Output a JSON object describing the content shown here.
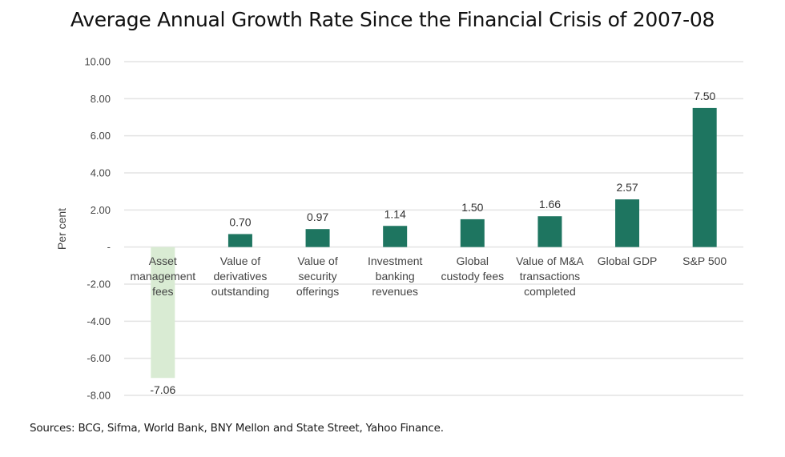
{
  "chart_data": {
    "type": "bar",
    "title": "Average Annual Growth Rate Since the Financial Crisis of 2007-08",
    "xlabel": "",
    "ylabel": "Per cent",
    "ylim": [
      -8,
      10
    ],
    "yticks": [
      10,
      8,
      6,
      4,
      2,
      0,
      -2,
      -4,
      -6,
      -8
    ],
    "ytick_labels": [
      "10.00",
      "8.00",
      "6.00",
      "4.00",
      "2.00",
      "-",
      "-2.00",
      "-4.00",
      "-6.00",
      "-8.00"
    ],
    "grid": true,
    "legend": "none",
    "categories": [
      [
        "Asset",
        "management",
        "fees"
      ],
      [
        "Value of",
        "derivatives",
        "outstanding"
      ],
      [
        "Value of",
        "security",
        "offerings"
      ],
      [
        "Investment",
        "banking",
        "revenues"
      ],
      [
        "Global",
        "custody fees"
      ],
      [
        "Value of M&A",
        "transactions",
        "completed"
      ],
      [
        "Global GDP"
      ],
      [
        "S&P 500"
      ]
    ],
    "values": [
      -7.06,
      0.7,
      0.97,
      1.14,
      1.5,
      1.66,
      2.57,
      7.5
    ],
    "data_labels": [
      "-7.06",
      "0.70",
      "0.97",
      "1.14",
      "1.50",
      "1.66",
      "2.57",
      "7.50"
    ],
    "colors": {
      "positive": "#1e7560",
      "negative": "#d9ebd3",
      "grid": "#e3e3e3"
    }
  },
  "source": "Sources: BCG, Sifma, World Bank, BNY Mellon and State Street, Yahoo Finance."
}
